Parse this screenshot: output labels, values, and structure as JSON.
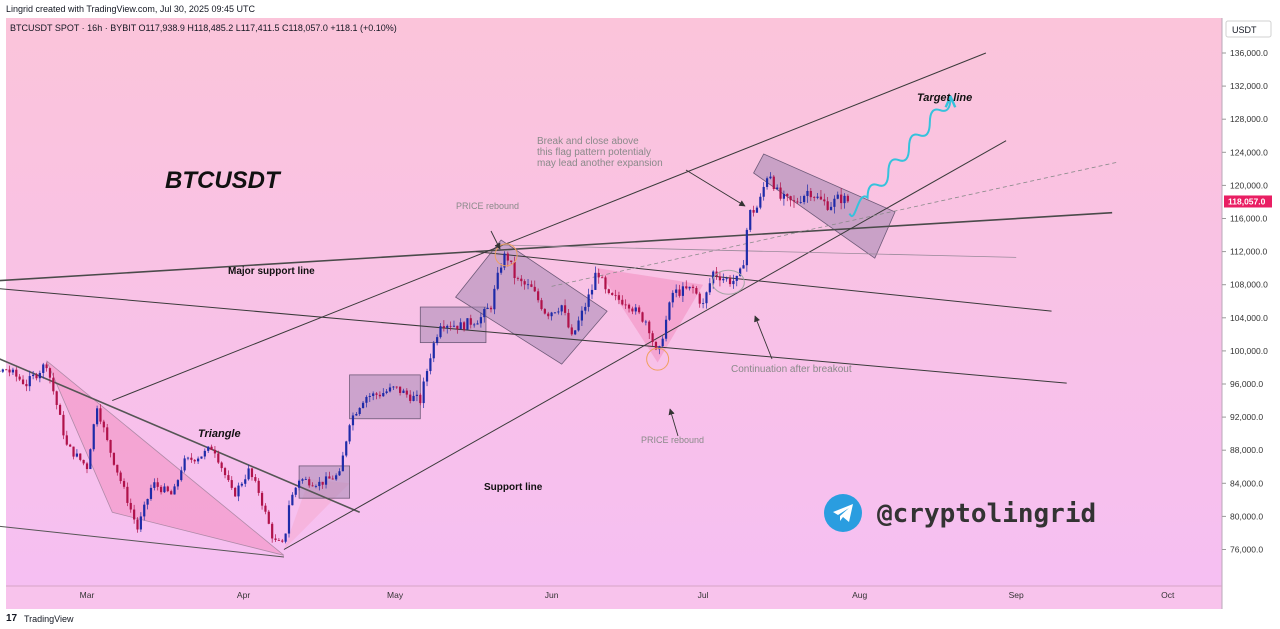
{
  "header": {
    "credit": "Lingrid created with TradingView.com, Jul 30, 2025 09:45 UTC"
  },
  "footer": {
    "brand": "TradingView",
    "logo_glyph": "17"
  },
  "chart_data": {
    "type": "candlestick",
    "symbol_line": "BTCUSDT SPOT · 16h · BYBIT  O117,938.9  H118,485.2  L117,411.5  C118,057.0  +118.1 (+0.10%)",
    "title": "BTCUSDT",
    "currency": "USDT",
    "last_price_label": "118,057.0",
    "last_price": 118057,
    "ylim": [
      72700,
      140200
    ],
    "y_ticks": [
      {
        "value": 76000,
        "label": "76,000.0"
      },
      {
        "value": 80000,
        "label": "80,000.0"
      },
      {
        "value": 84000,
        "label": "84,000.0"
      },
      {
        "value": 88000,
        "label": "88,000.0"
      },
      {
        "value": 92000,
        "label": "92,000.0"
      },
      {
        "value": 96000,
        "label": "96,000.0"
      },
      {
        "value": 100000,
        "label": "100,000.0"
      },
      {
        "value": 104000,
        "label": "104,000.0"
      },
      {
        "value": 108000,
        "label": "108,000.0"
      },
      {
        "value": 112000,
        "label": "112,000.0"
      },
      {
        "value": 116000,
        "label": "116,000.0"
      },
      {
        "value": 120000,
        "label": "120,000.0"
      },
      {
        "value": 124000,
        "label": "124,000.0"
      },
      {
        "value": 128000,
        "label": "128,000.0"
      },
      {
        "value": 132000,
        "label": "132,000.0"
      },
      {
        "value": 136000,
        "label": "136,000.0"
      }
    ],
    "x_ticks": [
      {
        "date": "2025-03-01",
        "label": "Mar"
      },
      {
        "date": "2025-04-01",
        "label": "Apr"
      },
      {
        "date": "2025-05-01",
        "label": "May"
      },
      {
        "date": "2025-06-01",
        "label": "Jun"
      },
      {
        "date": "2025-07-01",
        "label": "Jul"
      },
      {
        "date": "2025-08-01",
        "label": "Aug"
      },
      {
        "date": "2025-09-01",
        "label": "Sep"
      },
      {
        "date": "2025-10-01",
        "label": "Oct"
      }
    ],
    "price_path": [
      [
        "2025-02-01",
        97500
      ],
      [
        "2025-02-05",
        98200
      ],
      [
        "2025-02-09",
        96500
      ],
      [
        "2025-02-13",
        97800
      ],
      [
        "2025-02-17",
        96000
      ],
      [
        "2025-02-21",
        98500
      ],
      [
        "2025-02-25",
        88500
      ],
      [
        "2025-03-01",
        86000
      ],
      [
        "2025-03-03",
        93500
      ],
      [
        "2025-03-05",
        89000
      ],
      [
        "2025-03-09",
        82000
      ],
      [
        "2025-03-11",
        78500
      ],
      [
        "2025-03-14",
        84000
      ],
      [
        "2025-03-18",
        82500
      ],
      [
        "2025-03-20",
        86500
      ],
      [
        "2025-03-24",
        87500
      ],
      [
        "2025-03-26",
        88500
      ],
      [
        "2025-03-30",
        82500
      ],
      [
        "2025-04-02",
        85500
      ],
      [
        "2025-04-04",
        83000
      ],
      [
        "2025-04-07",
        77000
      ],
      [
        "2025-04-09",
        76500
      ],
      [
        "2025-04-10",
        81500
      ],
      [
        "2025-04-12",
        84500
      ],
      [
        "2025-04-16",
        84000
      ],
      [
        "2025-04-20",
        85000
      ],
      [
        "2025-04-22",
        91500
      ],
      [
        "2025-04-25",
        94500
      ],
      [
        "2025-04-28",
        94800
      ],
      [
        "2025-05-01",
        95500
      ],
      [
        "2025-05-04",
        94500
      ],
      [
        "2025-05-06",
        94000
      ],
      [
        "2025-05-08",
        99500
      ],
      [
        "2025-05-10",
        103500
      ],
      [
        "2025-05-14",
        103000
      ],
      [
        "2025-05-18",
        104000
      ],
      [
        "2025-05-20",
        105500
      ],
      [
        "2025-05-22",
        110500
      ],
      [
        "2025-05-23",
        111800
      ],
      [
        "2025-05-25",
        108500
      ],
      [
        "2025-05-28",
        107500
      ],
      [
        "2025-05-31",
        104500
      ],
      [
        "2025-06-03",
        105500
      ],
      [
        "2025-06-05",
        101500
      ],
      [
        "2025-06-07",
        104500
      ],
      [
        "2025-06-09",
        107500
      ],
      [
        "2025-06-10",
        110000
      ],
      [
        "2025-06-12",
        106500
      ],
      [
        "2025-06-16",
        106000
      ],
      [
        "2025-06-18",
        104500
      ],
      [
        "2025-06-20",
        103500
      ],
      [
        "2025-06-22",
        99000
      ],
      [
        "2025-06-23",
        102000
      ],
      [
        "2025-06-25",
        107000
      ],
      [
        "2025-06-29",
        107500
      ],
      [
        "2025-07-01",
        105500
      ],
      [
        "2025-07-03",
        109500
      ],
      [
        "2025-07-06",
        108500
      ],
      [
        "2025-07-08",
        108500
      ],
      [
        "2025-07-09",
        111000
      ],
      [
        "2025-07-10",
        116500
      ],
      [
        "2025-07-12",
        117500
      ],
      [
        "2025-07-14",
        122000
      ],
      [
        "2025-07-16",
        118500
      ],
      [
        "2025-07-19",
        117800
      ],
      [
        "2025-07-22",
        119500
      ],
      [
        "2025-07-24",
        118200
      ],
      [
        "2025-07-26",
        117600
      ],
      [
        "2025-07-28",
        118500
      ],
      [
        "2025-07-30",
        118057
      ]
    ],
    "annotations": [
      {
        "id": "target",
        "text": "Target line"
      },
      {
        "id": "break",
        "text": "Break and close above\nthis flag pattern potentialy\nmay lead another expansion"
      },
      {
        "id": "price_rebound_top",
        "text": "PRICE rebound"
      },
      {
        "id": "major_support",
        "text": "Major support line"
      },
      {
        "id": "triangle",
        "text": "Triangle"
      },
      {
        "id": "support",
        "text": "Support line"
      },
      {
        "id": "continuation",
        "text": "Continuation after breakout"
      },
      {
        "id": "price_rebound_bottom",
        "text": "PRICE rebound"
      }
    ],
    "watermark": "@cryptolingrid",
    "colors": {
      "background_top": "#fbc3dc",
      "background_bottom": "#f5bff0",
      "up": "#1e2ba8",
      "down": "#b0124a",
      "box_fill": "#a88bb4",
      "last_price_tag": "#e91e63",
      "projection": "#35c2dc",
      "telegram": "#2a9de0"
    }
  }
}
